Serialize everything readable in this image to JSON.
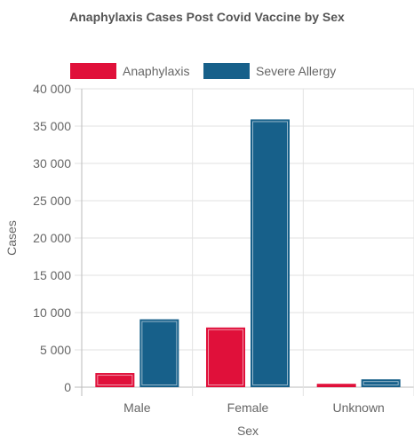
{
  "chart_data": {
    "type": "bar",
    "title": "Anaphylaxis Cases Post Covid Vaccine by Sex",
    "xlabel": "Sex",
    "ylabel": "Cases",
    "categories": [
      "Male",
      "Female",
      "Unknown"
    ],
    "series": [
      {
        "name": "Anaphylaxis",
        "values": [
          1900,
          8000,
          450
        ],
        "color": "#e0103a"
      },
      {
        "name": "Severe Allergy",
        "values": [
          9100,
          35900,
          1050
        ],
        "color": "#17608a"
      }
    ],
    "ylim": [
      0,
      40000
    ],
    "yticks": [
      0,
      5000,
      10000,
      15000,
      20000,
      25000,
      30000,
      35000,
      40000
    ],
    "ytick_labels": [
      "0",
      "5 000",
      "10 000",
      "15 000",
      "20 000",
      "25 000",
      "30 000",
      "35 000",
      "40 000"
    ],
    "grid": true,
    "legend_position": "top-left"
  }
}
